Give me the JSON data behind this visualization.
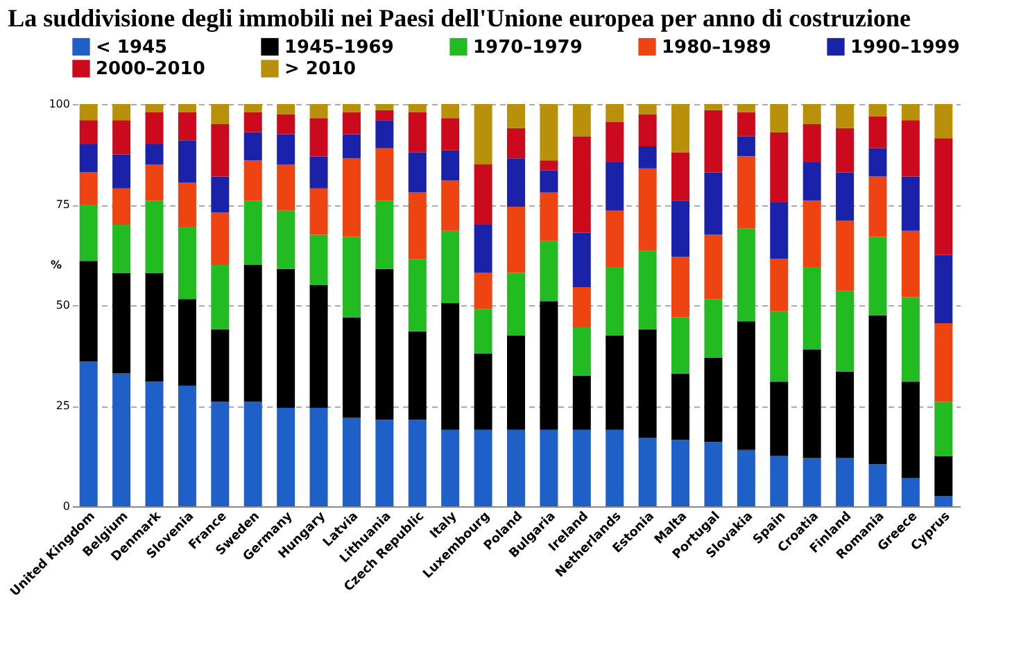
{
  "chart_data": {
    "type": "bar",
    "stacked": true,
    "title": "La suddivisione degli immobili nei Paesi dell'Unione europea per anno di costruzione",
    "ylabel": "%",
    "categories": [
      "United Kingdom",
      "Belgium",
      "Denmark",
      "Slovenia",
      "France",
      "Sweden",
      "Germany",
      "Hungary",
      "Latvia",
      "Lithuania",
      "Czech Republic",
      "Italy",
      "Luxembourg",
      "Poland",
      "Bulgaria",
      "Ireland",
      "Netherlands",
      "Estonia",
      "Malta",
      "Portugal",
      "Slovakia",
      "Spain",
      "Croatia",
      "Finland",
      "Romania",
      "Greece",
      "Cyprus"
    ],
    "series": [
      {
        "name": "< 1945",
        "color": "#1f5fc8",
        "values": [
          36,
          33,
          31,
          30,
          26,
          26,
          24.5,
          24.5,
          22,
          21.5,
          21.5,
          19,
          19,
          19,
          19,
          19,
          19,
          17,
          16.5,
          16,
          14,
          12.5,
          12,
          12,
          10.5,
          7,
          2.5
        ]
      },
      {
        "name": "1945–1969",
        "color": "#000000",
        "values": [
          25,
          25,
          27,
          21.5,
          18,
          34,
          34.5,
          30.5,
          25,
          37.5,
          22,
          31.5,
          19,
          23.5,
          32,
          13.5,
          23.5,
          27,
          16.5,
          21,
          32,
          18.5,
          27,
          21.5,
          37,
          24,
          10
        ]
      },
      {
        "name": "1970–1979",
        "color": "#22bb22",
        "values": [
          14,
          12,
          18,
          18,
          16,
          16,
          14.5,
          12.5,
          20,
          17,
          18,
          18,
          11,
          15.5,
          15,
          12,
          17,
          19.5,
          14,
          14.5,
          23,
          17.5,
          20.5,
          20,
          19.5,
          21,
          13.5
        ]
      },
      {
        "name": "1980–1989",
        "color": "#ee4411",
        "values": [
          8,
          9,
          9,
          11,
          13,
          10,
          11.5,
          11.5,
          19.5,
          13,
          16.5,
          12.5,
          9,
          16.5,
          12,
          10,
          14,
          20.5,
          15,
          16,
          18,
          13,
          16.5,
          17.5,
          15,
          16.5,
          19.5
        ]
      },
      {
        "name": "1990–1999",
        "color": "#1a22aa",
        "values": [
          7,
          8.5,
          5,
          10.5,
          9,
          7,
          7.5,
          8,
          6,
          7,
          10,
          7.5,
          12,
          12,
          5.5,
          13.5,
          12,
          5.5,
          14,
          15.5,
          5,
          14,
          9.5,
          12,
          7,
          13.5,
          17
        ]
      },
      {
        "name": "2000–2010",
        "color": "#cc0a1e",
        "values": [
          6,
          8.5,
          8,
          7,
          13,
          5,
          5,
          9.5,
          5.5,
          2.5,
          10,
          8,
          15,
          7.5,
          2.5,
          24,
          10,
          8,
          12,
          15.5,
          6,
          17.5,
          9.5,
          11,
          8,
          14,
          29
        ]
      },
      {
        "name": "> 2010",
        "color": "#b8900a",
        "values": [
          4,
          4,
          2,
          2,
          5,
          2,
          2.5,
          3.5,
          2,
          1.5,
          2,
          3.5,
          15,
          6,
          14,
          8,
          4.5,
          2.5,
          12,
          1.5,
          2,
          7,
          5,
          6,
          3,
          4,
          8.5
        ]
      }
    ],
    "ylim": [
      0,
      100
    ],
    "yticks": [
      0,
      25,
      50,
      75,
      100
    ],
    "grid": "y",
    "legend": "top left"
  }
}
